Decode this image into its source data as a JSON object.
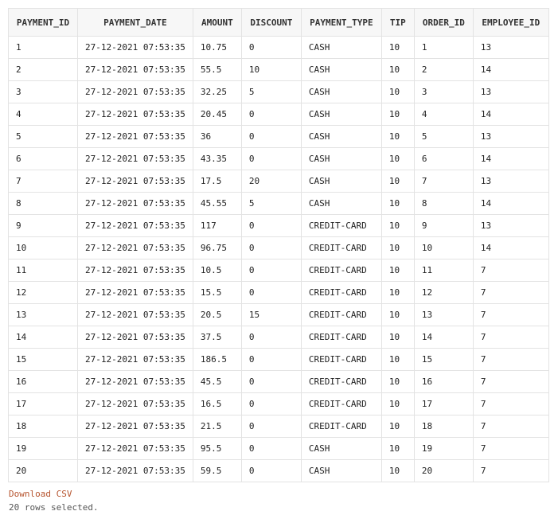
{
  "columns": [
    "PAYMENT_ID",
    "PAYMENT_DATE",
    "AMOUNT",
    "DISCOUNT",
    "PAYMENT_TYPE",
    "TIP",
    "ORDER_ID",
    "EMPLOYEE_ID"
  ],
  "rows": [
    [
      "1",
      "27-12-2021 07:53:35",
      "10.75",
      "0",
      "CASH",
      "10",
      "1",
      "13"
    ],
    [
      "2",
      "27-12-2021 07:53:35",
      "55.5",
      "10",
      "CASH",
      "10",
      "2",
      "14"
    ],
    [
      "3",
      "27-12-2021 07:53:35",
      "32.25",
      "5",
      "CASH",
      "10",
      "3",
      "13"
    ],
    [
      "4",
      "27-12-2021 07:53:35",
      "20.45",
      "0",
      "CASH",
      "10",
      "4",
      "14"
    ],
    [
      "5",
      "27-12-2021 07:53:35",
      "36",
      "0",
      "CASH",
      "10",
      "5",
      "13"
    ],
    [
      "6",
      "27-12-2021 07:53:35",
      "43.35",
      "0",
      "CASH",
      "10",
      "6",
      "14"
    ],
    [
      "7",
      "27-12-2021 07:53:35",
      "17.5",
      "20",
      "CASH",
      "10",
      "7",
      "13"
    ],
    [
      "8",
      "27-12-2021 07:53:35",
      "45.55",
      "5",
      "CASH",
      "10",
      "8",
      "14"
    ],
    [
      "9",
      "27-12-2021 07:53:35",
      "117",
      "0",
      "CREDIT-CARD",
      "10",
      "9",
      "13"
    ],
    [
      "10",
      "27-12-2021 07:53:35",
      "96.75",
      "0",
      "CREDIT-CARD",
      "10",
      "10",
      "14"
    ],
    [
      "11",
      "27-12-2021 07:53:35",
      "10.5",
      "0",
      "CREDIT-CARD",
      "10",
      "11",
      "7"
    ],
    [
      "12",
      "27-12-2021 07:53:35",
      "15.5",
      "0",
      "CREDIT-CARD",
      "10",
      "12",
      "7"
    ],
    [
      "13",
      "27-12-2021 07:53:35",
      "20.5",
      "15",
      "CREDIT-CARD",
      "10",
      "13",
      "7"
    ],
    [
      "14",
      "27-12-2021 07:53:35",
      "37.5",
      "0",
      "CREDIT-CARD",
      "10",
      "14",
      "7"
    ],
    [
      "15",
      "27-12-2021 07:53:35",
      "186.5",
      "0",
      "CREDIT-CARD",
      "10",
      "15",
      "7"
    ],
    [
      "16",
      "27-12-2021 07:53:35",
      "45.5",
      "0",
      "CREDIT-CARD",
      "10",
      "16",
      "7"
    ],
    [
      "17",
      "27-12-2021 07:53:35",
      "16.5",
      "0",
      "CREDIT-CARD",
      "10",
      "17",
      "7"
    ],
    [
      "18",
      "27-12-2021 07:53:35",
      "21.5",
      "0",
      "CREDIT-CARD",
      "10",
      "18",
      "7"
    ],
    [
      "19",
      "27-12-2021 07:53:35",
      "95.5",
      "0",
      "CASH",
      "10",
      "19",
      "7"
    ],
    [
      "20",
      "27-12-2021 07:53:35",
      "59.5",
      "0",
      "CASH",
      "10",
      "20",
      "7"
    ]
  ],
  "footer": {
    "download_label": "Download CSV",
    "status": "20 rows selected."
  },
  "colors": {
    "link": "#b6542e",
    "border": "#e3e3e3",
    "header_bg": "#f7f7f7"
  }
}
